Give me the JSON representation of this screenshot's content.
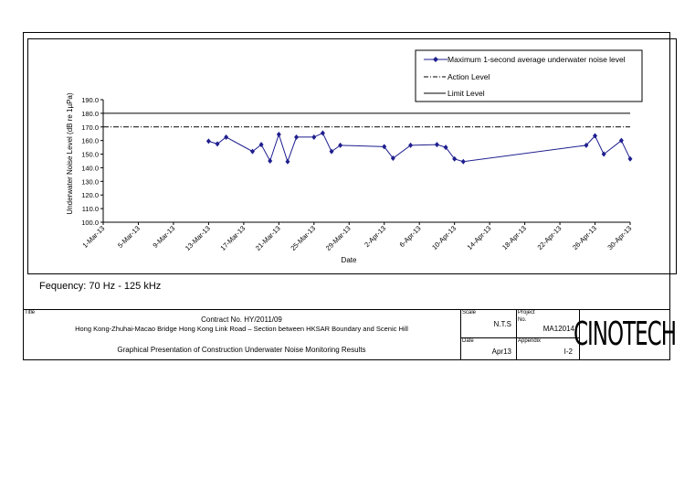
{
  "chart_data": {
    "type": "line",
    "ylabel": "Underwater Noise Level (dB re 1µPa)",
    "xlabel": "Date",
    "ylim": [
      100,
      190
    ],
    "y_ticks": [
      "100.0",
      "110.0",
      "120.0",
      "130.0",
      "140.0",
      "150.0",
      "160.0",
      "170.0",
      "180.0",
      "190.0"
    ],
    "x_tick_labels": [
      "1-Mar-13",
      "5-Mar-13",
      "9-Mar-13",
      "13-Mar-13",
      "17-Mar-13",
      "21-Mar-13",
      "25-Mar-13",
      "29-Mar-13",
      "2-Apr-13",
      "6-Apr-13",
      "10-Apr-13",
      "14-Apr-13",
      "18-Apr-13",
      "22-Apr-13",
      "26-Apr-13",
      "30-Apr-13"
    ],
    "x_tick_dates": [
      "2013-03-01",
      "2013-03-05",
      "2013-03-09",
      "2013-03-13",
      "2013-03-17",
      "2013-03-21",
      "2013-03-25",
      "2013-03-29",
      "2013-04-02",
      "2013-04-06",
      "2013-04-10",
      "2013-04-14",
      "2013-04-18",
      "2013-04-22",
      "2013-04-26",
      "2013-04-30"
    ],
    "x_range": [
      "2013-03-01",
      "2013-04-30"
    ],
    "grid": false,
    "legend_position": "top-right",
    "series": [
      {
        "name": "Maximum 1-second average underwater noise level",
        "color": "#1f1f8f",
        "marker": "diamond",
        "points": [
          {
            "x": "2013-03-13",
            "y": 159.5
          },
          {
            "x": "2013-03-14",
            "y": 157.5
          },
          {
            "x": "2013-03-15",
            "y": 162.5
          },
          {
            "x": "2013-03-18",
            "y": 152.0
          },
          {
            "x": "2013-03-19",
            "y": 157.0
          },
          {
            "x": "2013-03-20",
            "y": 145.0
          },
          {
            "x": "2013-03-21",
            "y": 164.5
          },
          {
            "x": "2013-03-22",
            "y": 144.5
          },
          {
            "x": "2013-03-23",
            "y": 162.5
          },
          {
            "x": "2013-03-25",
            "y": 162.5
          },
          {
            "x": "2013-03-26",
            "y": 165.5
          },
          {
            "x": "2013-03-27",
            "y": 152.0
          },
          {
            "x": "2013-03-28",
            "y": 156.5
          },
          {
            "x": "2013-04-02",
            "y": 155.5
          },
          {
            "x": "2013-04-03",
            "y": 147.0
          },
          {
            "x": "2013-04-05",
            "y": 156.5
          },
          {
            "x": "2013-04-08",
            "y": 157.0
          },
          {
            "x": "2013-04-09",
            "y": 155.0
          },
          {
            "x": "2013-04-10",
            "y": 146.5
          },
          {
            "x": "2013-04-11",
            "y": 144.5
          },
          {
            "x": "2013-04-25",
            "y": 156.5
          },
          {
            "x": "2013-04-26",
            "y": 163.5
          },
          {
            "x": "2013-04-27",
            "y": 150.0
          },
          {
            "x": "2013-04-29",
            "y": 160.0
          },
          {
            "x": "2013-04-30",
            "y": 146.5
          }
        ]
      },
      {
        "name": "Action Level",
        "color": "#000000",
        "style": "dash-dot",
        "y": 170.0
      },
      {
        "name": "Limit Level",
        "color": "#000000",
        "style": "solid",
        "y": 180.0
      }
    ]
  },
  "note": {
    "frequency": "Fequency: 70 Hz - 125 kHz"
  },
  "title_block": {
    "title_label": "Title",
    "contract_line": "Contract No. HY/2011/09",
    "project_line": "Hong Kong-Zhuhai-Macao Bridge Hong Kong Link Road – Section between HKSAR Boundary and Scenic Hill",
    "presentation_line": "Graphical Presentation of Construction Underwater Noise Monitoring Results",
    "scale_label": "Scale",
    "scale_value": "N.T.S",
    "project_label": "Project",
    "no_label": "No.",
    "project_no": "MA12014",
    "date_label": "Date",
    "date_value": "Apr13",
    "appendix_label": "Appendix",
    "appendix_value": "I-2",
    "logo_text": "CINOTECH"
  }
}
